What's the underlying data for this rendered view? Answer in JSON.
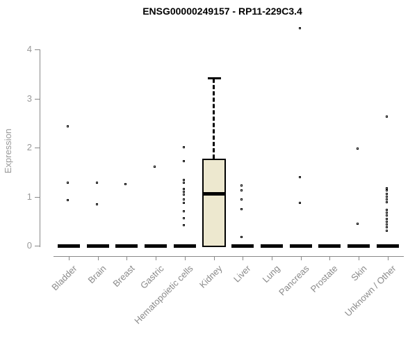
{
  "header": {
    "title": "ENSG00000249157 - RP11-229C3.4"
  },
  "chart_data": {
    "type": "boxplot",
    "title": "ENSG00000249157 - RP11-229C3.4",
    "xlabel": "",
    "ylabel": "Expression",
    "ylim": [
      0,
      4.6
    ],
    "yticks": [
      0,
      1,
      2,
      3,
      4
    ],
    "grid": false,
    "legend": "none",
    "categories": [
      "Bladder",
      "Brain",
      "Breast",
      "Gastric",
      "Hematopoietic cells",
      "Kidney",
      "Liver",
      "Lung",
      "Pancreas",
      "Prostate",
      "Skin",
      "Unknown / Other"
    ],
    "boxes": [
      {
        "category": "Bladder",
        "flat": true,
        "q1": 0,
        "median": 0,
        "q3": 0,
        "whisker_low": 0,
        "whisker_high": 0,
        "outliers": [
          2.41,
          1.26,
          0.91
        ]
      },
      {
        "category": "Brain",
        "flat": true,
        "q1": 0,
        "median": 0,
        "q3": 0,
        "whisker_low": 0,
        "whisker_high": 0,
        "outliers": [
          1.26,
          0.82
        ]
      },
      {
        "category": "Breast",
        "flat": true,
        "q1": 0,
        "median": 0,
        "q3": 0,
        "whisker_low": 0,
        "whisker_high": 0,
        "outliers": [
          1.23
        ]
      },
      {
        "category": "Gastric",
        "flat": true,
        "q1": 0,
        "median": 0,
        "q3": 0,
        "whisker_low": 0,
        "whisker_high": 0,
        "outliers": [
          1.59
        ]
      },
      {
        "category": "Hematopoietic cells",
        "flat": true,
        "q1": 0,
        "median": 0,
        "q3": 0,
        "whisker_low": 0,
        "whisker_high": 0,
        "outliers": [
          1.99,
          1.7,
          1.32,
          1.26,
          1.13,
          1.08,
          1.02,
          0.92,
          0.85,
          0.68,
          0.54,
          0.4
        ]
      },
      {
        "category": "Kidney",
        "flat": false,
        "q1": 0,
        "median": 1.05,
        "q3": 1.78,
        "whisker_low": 0,
        "whisker_high": 3.4,
        "outliers": []
      },
      {
        "category": "Liver",
        "flat": true,
        "q1": 0,
        "median": 0,
        "q3": 0,
        "whisker_low": 0,
        "whisker_high": 0,
        "outliers": [
          1.21,
          1.11,
          0.92,
          0.72,
          0.16
        ]
      },
      {
        "category": "Lung",
        "flat": true,
        "q1": 0,
        "median": 0,
        "q3": 0,
        "whisker_low": 0,
        "whisker_high": 0,
        "outliers": []
      },
      {
        "category": "Pancreas",
        "flat": true,
        "q1": 0,
        "median": 0,
        "q3": 0,
        "whisker_low": 0,
        "whisker_high": 0,
        "outliers": [
          4.41,
          1.38,
          0.85
        ]
      },
      {
        "category": "Prostate",
        "flat": true,
        "q1": 0,
        "median": 0,
        "q3": 0,
        "whisker_low": 0,
        "whisker_high": 0,
        "outliers": []
      },
      {
        "category": "Skin",
        "flat": true,
        "q1": 0,
        "median": 0,
        "q3": 0,
        "whisker_low": 0,
        "whisker_high": 0,
        "outliers": [
          1.96,
          0.43
        ]
      },
      {
        "category": "Unknown / Other",
        "flat": true,
        "q1": 0,
        "median": 0,
        "q3": 0,
        "whisker_low": 0,
        "whisker_high": 0,
        "outliers": [
          2.61,
          1.15,
          1.1,
          1.04,
          0.98,
          0.92,
          0.87,
          0.71,
          0.65,
          0.59,
          0.53,
          0.47,
          0.41,
          0.35,
          0.29
        ]
      }
    ],
    "colors": {
      "box_fill": "#EDE8CF",
      "box_border": "#000000",
      "median": "#000000",
      "outlier": "#000000",
      "axis": "#888888",
      "tick_label": "#999999",
      "category_label": "#8a8a8a",
      "title": "#000000",
      "background": "#ffffff"
    }
  }
}
